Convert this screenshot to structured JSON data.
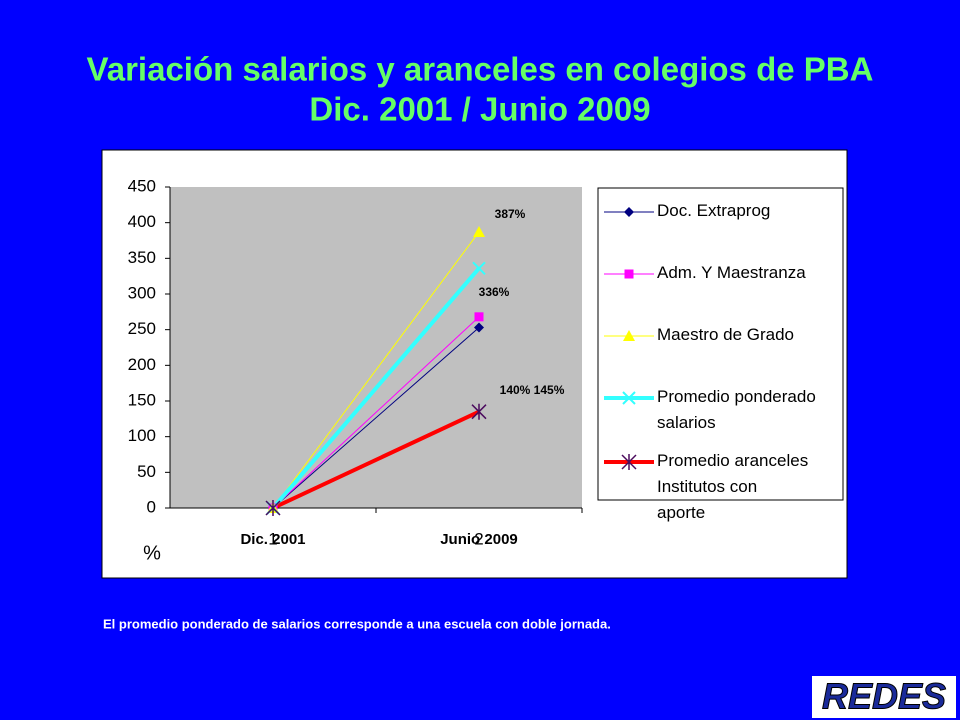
{
  "title": "Variación salarios y aranceles en colegios de PBA",
  "subtitle": "Dic. 2001 / Junio 2009",
  "chart_data": {
    "type": "line",
    "categories": [
      "Dic. 2001",
      "Junio 2009"
    ],
    "x_index_labels": [
      "1",
      "2"
    ],
    "y_label": "%",
    "series": [
      {
        "name": "Doc. Extraprog",
        "color": "#000080",
        "marker": "diamond",
        "width": 1,
        "values": [
          0,
          253
        ]
      },
      {
        "name": "Adm. Y Maestranza",
        "color": "#ff00ff",
        "marker": "square",
        "width": 1,
        "values": [
          0,
          268
        ]
      },
      {
        "name": "Maestro de Grado",
        "color": "#ffff00",
        "marker": "triangle",
        "width": 1,
        "values": [
          0,
          387
        ]
      },
      {
        "name": "Promedio ponderado salarios",
        "color": "#33ffff",
        "marker": "x",
        "width": 4,
        "values": [
          0,
          336
        ]
      },
      {
        "name": "Promedio aranceles Institutos con aporte",
        "color": "#ff0000",
        "marker": "star",
        "width": 4,
        "values": [
          0,
          135
        ]
      }
    ],
    "annotations": [
      "387%",
      "336%",
      "140% 145%"
    ],
    "ylim": [
      0,
      450
    ],
    "yticks": [
      0,
      50,
      100,
      150,
      200,
      250,
      300,
      350,
      400,
      450
    ],
    "legend": "right"
  },
  "footnote": "El promedio ponderado de salarios corresponde a una escuela con doble jornada.",
  "logo": "REDES"
}
